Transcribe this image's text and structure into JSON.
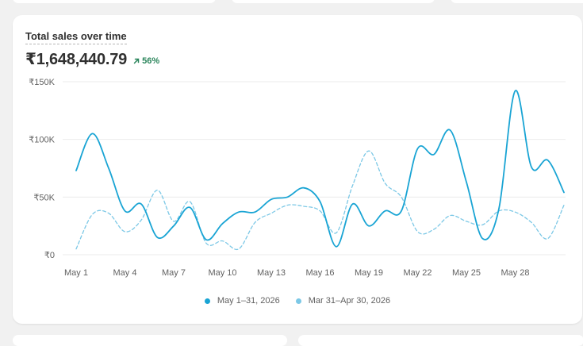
{
  "card": {
    "title": "Total sales over time",
    "total": "₹1,648,440.79",
    "change": "56%",
    "change_icon": "arrow-up-right-icon"
  },
  "chart_data": {
    "type": "line",
    "title": "Total sales over time",
    "x": [
      "May 1",
      "May 2",
      "May 3",
      "May 4",
      "May 5",
      "May 6",
      "May 7",
      "May 8",
      "May 9",
      "May 10",
      "May 11",
      "May 12",
      "May 13",
      "May 14",
      "May 15",
      "May 16",
      "May 17",
      "May 18",
      "May 19",
      "May 20",
      "May 21",
      "May 22",
      "May 23",
      "May 24",
      "May 25",
      "May 26",
      "May 27",
      "May 28",
      "May 29",
      "May 30",
      "May 31"
    ],
    "x_tick_labels": [
      "May 1",
      "May 4",
      "May 7",
      "May 10",
      "May 13",
      "May 16",
      "May 19",
      "May 22",
      "May 25",
      "May 28"
    ],
    "y_tick_labels": [
      "₹0",
      "₹50K",
      "₹100K",
      "₹150K"
    ],
    "ylim": [
      0,
      150000
    ],
    "grid": true,
    "legend_position": "bottom",
    "series": [
      {
        "name": "May 1–31, 2026",
        "color": "#19a4d4",
        "style": "solid",
        "values": [
          73000,
          105000,
          75000,
          38000,
          44000,
          15000,
          25000,
          41000,
          13000,
          27000,
          37000,
          37000,
          48000,
          50000,
          58000,
          46000,
          7000,
          44000,
          25000,
          38000,
          38000,
          92000,
          87000,
          108000,
          63000,
          14000,
          40000,
          142000,
          76000,
          82000,
          54000
        ]
      },
      {
        "name": "Mar 31–Apr 30, 2026",
        "color": "#7cc8e6",
        "style": "dashed",
        "values": [
          5000,
          35000,
          36000,
          20000,
          30000,
          56000,
          29000,
          46000,
          10000,
          12000,
          5000,
          28000,
          36000,
          43000,
          42000,
          38000,
          19000,
          60000,
          90000,
          62000,
          50000,
          20000,
          22000,
          34000,
          29000,
          26000,
          38000,
          37000,
          28000,
          14000,
          43000
        ]
      }
    ]
  }
}
